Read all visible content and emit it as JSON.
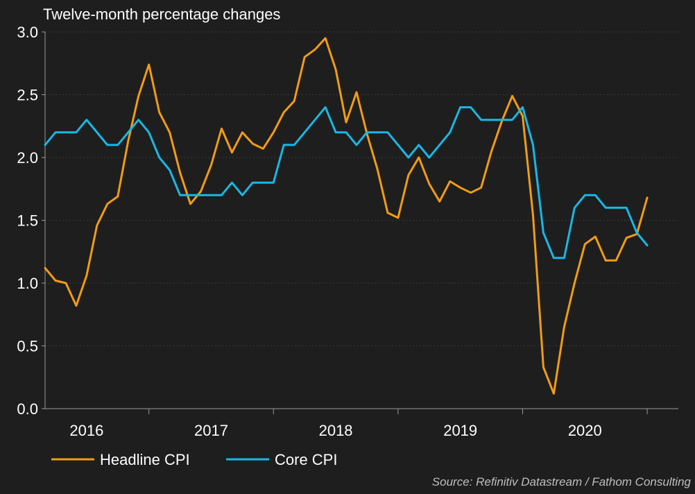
{
  "chart_data": {
    "type": "line",
    "title": "Twelve-month percentage changes",
    "xlabel": "",
    "ylabel": "",
    "ylim": [
      0,
      3
    ],
    "yticks": [
      "0.0",
      "0.5",
      "1.0",
      "1.5",
      "2.0",
      "2.5",
      "3.0"
    ],
    "ytick_values": [
      0,
      0.5,
      1.0,
      1.5,
      2.0,
      2.5,
      3.0
    ],
    "xlim": [
      0,
      61
    ],
    "year_labels": [
      "2016",
      "2017",
      "2018",
      "2019",
      "2020"
    ],
    "year_label_positions": [
      4,
      16,
      28,
      40,
      52
    ],
    "year_tick_positions": [
      10,
      22,
      34,
      46,
      58
    ],
    "grid": true,
    "series": [
      {
        "name": "Headline CPI",
        "color": "#f39c12",
        "values": [
          1.12,
          1.02,
          1.0,
          0.82,
          1.06,
          1.46,
          1.63,
          1.69,
          2.13,
          2.49,
          2.74,
          2.36,
          2.2,
          1.88,
          1.63,
          1.73,
          1.94,
          2.23,
          2.04,
          2.2,
          2.11,
          2.07,
          2.2,
          2.36,
          2.45,
          2.8,
          2.86,
          2.95,
          2.7,
          2.28,
          2.52,
          2.19,
          1.91,
          1.56,
          1.52,
          1.86,
          2.0,
          1.79,
          1.65,
          1.81,
          1.76,
          1.72,
          1.76,
          2.05,
          2.29,
          2.49,
          2.33,
          1.54,
          0.33,
          0.12,
          0.65,
          1.0,
          1.31,
          1.37,
          1.18,
          1.18,
          1.36,
          1.39,
          1.68
        ]
      },
      {
        "name": "Core CPI",
        "color": "#16b9e6",
        "values": [
          2.1,
          2.2,
          2.2,
          2.2,
          2.3,
          2.2,
          2.1,
          2.1,
          2.2,
          2.3,
          2.2,
          2.0,
          1.9,
          1.7,
          1.7,
          1.7,
          1.7,
          1.7,
          1.8,
          1.7,
          1.8,
          1.8,
          1.8,
          2.1,
          2.1,
          2.2,
          2.3,
          2.4,
          2.2,
          2.2,
          2.1,
          2.2,
          2.2,
          2.2,
          2.1,
          2.0,
          2.1,
          2.0,
          2.1,
          2.2,
          2.4,
          2.4,
          2.3,
          2.3,
          2.3,
          2.3,
          2.4,
          2.1,
          1.4,
          1.2,
          1.2,
          1.6,
          1.7,
          1.7,
          1.6,
          1.6,
          1.6,
          1.4,
          1.3
        ]
      }
    ],
    "legend": [
      "Headline CPI",
      "Core CPI"
    ],
    "legend_position": "bottom-left",
    "source": "Source: Refinitiv Datastream / Fathom Consulting"
  }
}
